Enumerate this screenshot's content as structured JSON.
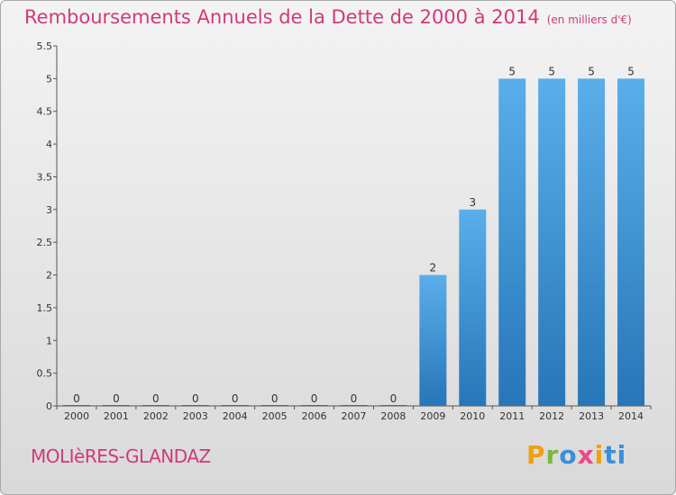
{
  "title": "Remboursements Annuels de la Dette de 2000 à 2014",
  "subtitle": "(en milliers d'€)",
  "place": "MOLIèRES-GLANDAZ",
  "logo": [
    "P",
    "r",
    "o",
    "x",
    "i",
    "ti"
  ],
  "chart_data": {
    "type": "bar",
    "title": "Remboursements Annuels de la Dette de 2000 à 2014",
    "subtitle": "(en milliers d'€)",
    "categories": [
      "2000",
      "2001",
      "2002",
      "2003",
      "2004",
      "2005",
      "2006",
      "2007",
      "2008",
      "2009",
      "2010",
      "2011",
      "2012",
      "2013",
      "2014"
    ],
    "values": [
      0,
      0,
      0,
      0,
      0,
      0,
      0,
      0,
      0,
      2,
      3,
      5,
      5,
      5,
      5
    ],
    "ylim": [
      0,
      5.5
    ],
    "yticks": [
      0,
      0.5,
      1,
      1.5,
      2,
      2.5,
      3,
      3.5,
      4,
      4.5,
      5,
      5.5
    ],
    "ytick_labels": [
      "0",
      "0.5",
      "1",
      "1.5",
      "2",
      "2.5",
      "3",
      "3.5",
      "4",
      "4.5",
      "5",
      "5.5"
    ],
    "bar_color": "#3a93d8",
    "grid": false
  }
}
